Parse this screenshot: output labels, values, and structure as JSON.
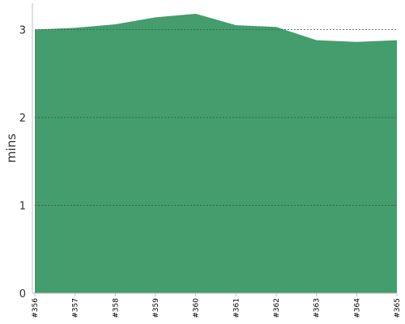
{
  "chart_data": {
    "type": "area",
    "categories": [
      "#356",
      "#357",
      "#358",
      "#359",
      "#360",
      "#361",
      "#362",
      "#363",
      "#364",
      "#365"
    ],
    "series": [
      {
        "values": [
          3.0,
          3.02,
          3.06,
          3.14,
          3.18,
          3.05,
          3.03,
          2.88,
          2.86,
          2.88
        ]
      }
    ],
    "title": "",
    "xlabel": "",
    "ylabel": "mins",
    "ylim": [
      0,
      3.3
    ],
    "yticks": [
      0,
      1,
      2,
      3
    ],
    "grid": true,
    "colors": {
      "fill": "#449d6c",
      "axis": "#bfbfbf",
      "grid": "#333333"
    }
  }
}
